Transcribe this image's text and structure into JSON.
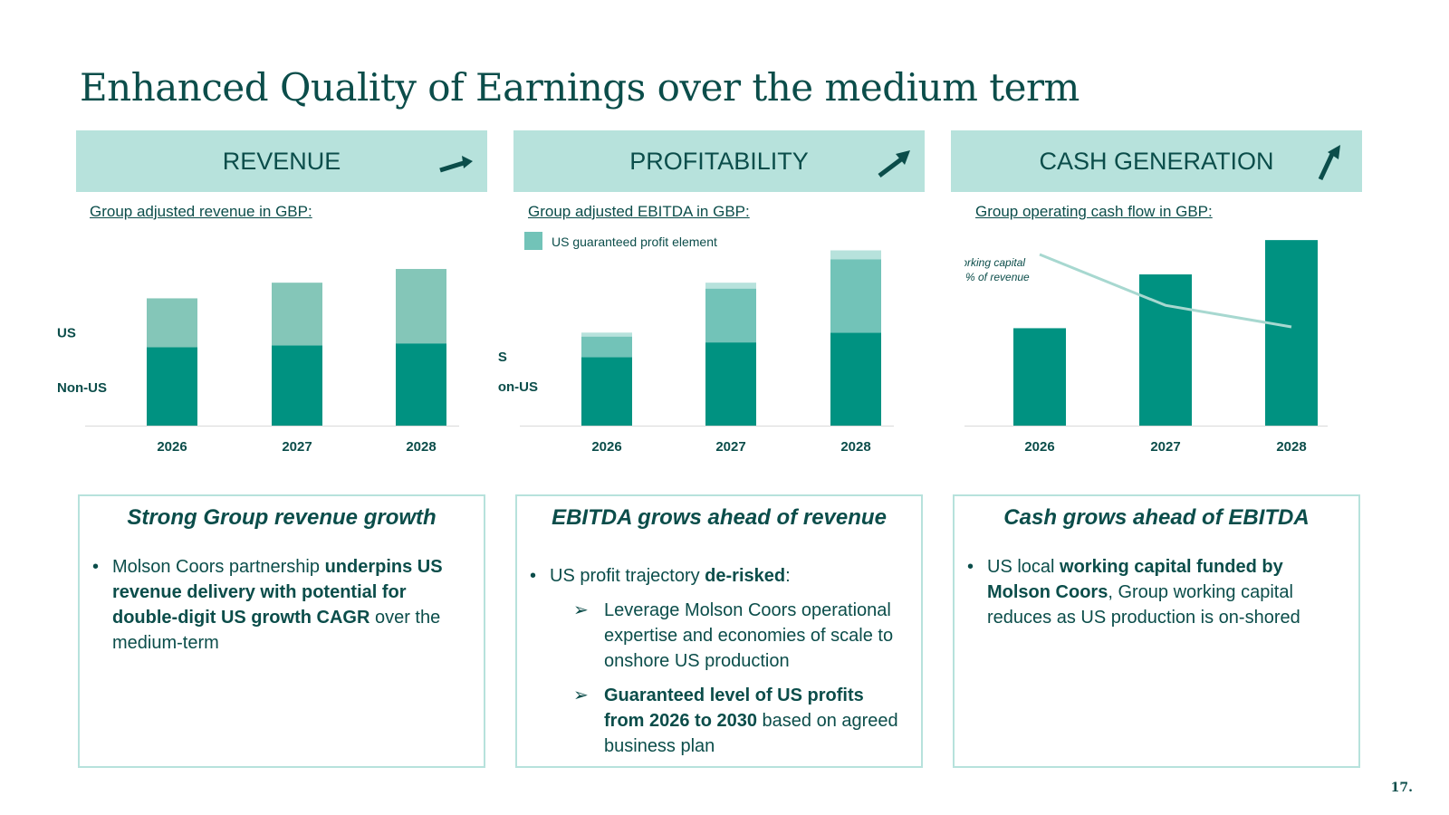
{
  "title": "Enhanced Quality of Earnings over the medium term",
  "page_number": "17.",
  "colors": {
    "dark": "#009281",
    "light": "#84c6b8",
    "header_bg": "#b7e2dc",
    "text": "#0b4d4a",
    "line": "#a7d8d0"
  },
  "panels": [
    {
      "header": "REVENUE",
      "arrow_icon": "arrow-up-right-icon",
      "subtitle": "Group adjusted revenue in GBP:",
      "row_labels": {
        "top": "US",
        "bottom": "Non-US"
      },
      "box_title": "Strong Group revenue growth",
      "bullet": {
        "pre": "Molson Coors partnership ",
        "bold": "underpins US revenue delivery with potential for double-digit US growth CAGR",
        "post": " over the medium-term"
      }
    },
    {
      "header": "PROFITABILITY",
      "arrow_icon": "arrow-up-right-icon",
      "subtitle": "Group adjusted EBITDA in GBP:",
      "legend": "US guaranteed profit element",
      "row_labels": {
        "top": "US",
        "bottom": "Non-US"
      },
      "box_title": "EBITDA grows ahead of revenue",
      "bullet": {
        "pre": "US profit trajectory ",
        "bold": "de-risked",
        "post": ":"
      },
      "subs": [
        {
          "pre": "Leverage Molson Coors operational expertise and economies of scale to onshore US production",
          "bold": "",
          "post": ""
        },
        {
          "pre": "",
          "bold": "Guaranteed level of US profits from 2026 to 2030",
          "post": " based on agreed business plan"
        }
      ]
    },
    {
      "header": "CASH GENERATION",
      "arrow_icon": "arrow-up-icon",
      "subtitle": "Group operating cash flow in GBP:",
      "annotation": [
        "Working capital",
        "as % of revenue"
      ],
      "box_title": "Cash grows ahead of EBITDA",
      "bullet": {
        "pre": "US local ",
        "bold": "working capital funded by Molson Coors",
        "post": ", Group working capital reduces as US production is on-shored"
      }
    }
  ],
  "chart_data": [
    {
      "type": "bar",
      "title": "Group adjusted revenue in GBP:",
      "categories": [
        "2026",
        "2027",
        "2028"
      ],
      "stacked": true,
      "series": [
        {
          "name": "Non-US",
          "values": [
            80,
            82,
            84
          ]
        },
        {
          "name": "US",
          "values": [
            50,
            64,
            76
          ]
        }
      ],
      "ylim": [
        0,
        185
      ],
      "grid": false
    },
    {
      "type": "bar",
      "title": "Group adjusted EBITDA in GBP:",
      "categories": [
        "2026",
        "2027",
        "2028"
      ],
      "stacked": true,
      "series": [
        {
          "name": "Non-US",
          "values": [
            70,
            85,
            95
          ]
        },
        {
          "name": "US",
          "values": [
            21,
            55,
            75
          ]
        },
        {
          "name": "US guaranteed profit element",
          "values": [
            4,
            6,
            9
          ]
        }
      ],
      "ylim": [
        0,
        185
      ],
      "grid": false
    },
    {
      "type": "bar",
      "title": "Group operating cash flow in GBP:",
      "categories": [
        "2026",
        "2027",
        "2028"
      ],
      "series": [
        {
          "name": "",
          "values": [
            105,
            163,
            200
          ]
        }
      ],
      "line_series": {
        "name": "Working capital as % of revenue",
        "values": [
          100,
          67,
          53
        ]
      },
      "ylim": [
        0,
        205
      ],
      "grid": false
    }
  ]
}
